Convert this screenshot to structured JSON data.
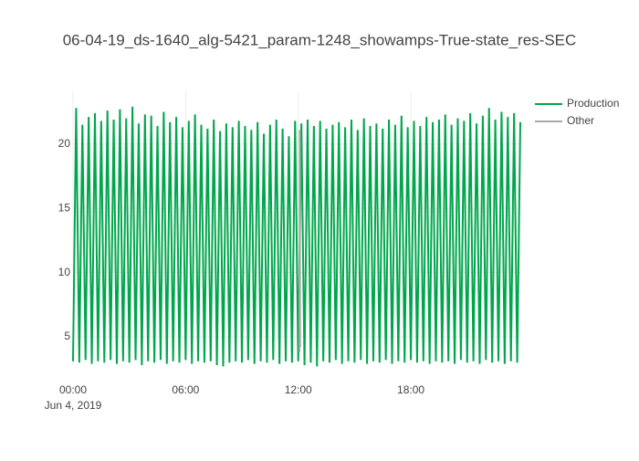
{
  "chart_data": {
    "type": "line",
    "title": "06-04-19_ds-1640_alg-5421_param-1248_showamps-True-state_res-SEC",
    "x_date_label": "Jun 4, 2019",
    "xlim": [
      "00:00",
      "23:50"
    ],
    "xticks": [
      "00:00",
      "06:00",
      "12:00",
      "18:00"
    ],
    "ylim": [
      2.8,
      24.1
    ],
    "yticks": [
      5,
      10,
      15,
      20
    ],
    "grid": true,
    "legend": "top-right",
    "series": [
      {
        "name": "Production",
        "color": "#00a64c",
        "x": [
          "00:00",
          "00:10",
          "00:20",
          "00:30",
          "00:40",
          "00:50",
          "01:00",
          "01:10",
          "01:20",
          "01:30",
          "01:40",
          "01:50",
          "02:00",
          "02:10",
          "02:20",
          "02:30",
          "02:40",
          "02:50",
          "03:00",
          "03:10",
          "03:20",
          "03:30",
          "03:40",
          "03:50",
          "04:00",
          "04:10",
          "04:20",
          "04:30",
          "04:40",
          "04:50",
          "05:00",
          "05:10",
          "05:20",
          "05:30",
          "05:40",
          "05:50",
          "06:00",
          "06:10",
          "06:20",
          "06:30",
          "06:40",
          "06:50",
          "07:00",
          "07:10",
          "07:20",
          "07:30",
          "07:40",
          "07:50",
          "08:00",
          "08:10",
          "08:20",
          "08:30",
          "08:40",
          "08:50",
          "09:00",
          "09:10",
          "09:20",
          "09:30",
          "09:40",
          "09:50",
          "10:00",
          "10:10",
          "10:20",
          "10:30",
          "10:40",
          "10:50",
          "11:00",
          "11:10",
          "11:20",
          "11:30",
          "11:40",
          "11:50",
          "12:00",
          "12:10",
          "12:20",
          "12:30",
          "12:40",
          "12:50",
          "13:00",
          "13:10",
          "13:20",
          "13:30",
          "13:40",
          "13:50",
          "14:00",
          "14:10",
          "14:20",
          "14:30",
          "14:40",
          "14:50",
          "15:00",
          "15:10",
          "15:20",
          "15:30",
          "15:40",
          "15:50",
          "16:00",
          "16:10",
          "16:20",
          "16:30",
          "16:40",
          "16:50",
          "17:00",
          "17:10",
          "17:20",
          "17:30",
          "17:40",
          "17:50",
          "18:00",
          "18:10",
          "18:20",
          "18:30",
          "18:40",
          "18:50",
          "19:00",
          "19:10",
          "19:20",
          "19:30",
          "19:40",
          "19:50",
          "20:00",
          "20:10",
          "20:20",
          "20:30",
          "20:40",
          "20:50",
          "21:00",
          "21:10",
          "21:20",
          "21:30",
          "21:40",
          "21:50",
          "22:00",
          "22:10",
          "22:20",
          "22:30",
          "22:40",
          "22:50",
          "23:00",
          "23:10",
          "23:20",
          "23:30",
          "23:40",
          "23:50"
        ],
        "values": [
          3.1,
          22.8,
          3.0,
          21.5,
          3.2,
          22.1,
          2.9,
          22.4,
          3.1,
          21.8,
          3.0,
          22.6,
          3.2,
          21.9,
          2.9,
          22.7,
          3.1,
          22.0,
          3.0,
          22.9,
          3.2,
          21.6,
          2.8,
          22.3,
          3.1,
          22.2,
          3.0,
          21.4,
          3.2,
          22.5,
          2.9,
          21.7,
          3.1,
          22.1,
          3.0,
          21.3,
          3.2,
          21.8,
          2.9,
          22.3,
          3.1,
          21.5,
          3.0,
          21.2,
          3.1,
          21.9,
          2.8,
          21.0,
          2.7,
          21.6,
          3.0,
          21.3,
          3.1,
          21.8,
          3.0,
          21.4,
          3.2,
          21.1,
          2.9,
          21.7,
          3.1,
          20.8,
          3.0,
          21.5,
          3.2,
          21.9,
          2.9,
          21.2,
          3.1,
          20.6,
          3.0,
          21.8,
          3.1,
          21.6,
          2.8,
          21.9,
          3.0,
          21.4,
          2.7,
          21.8,
          3.1,
          21.2,
          3.0,
          21.5,
          3.2,
          21.7,
          2.9,
          21.3,
          3.1,
          21.9,
          3.0,
          21.1,
          3.2,
          22.0,
          2.9,
          21.4,
          3.1,
          21.6,
          3.0,
          21.2,
          3.2,
          21.9,
          2.9,
          21.5,
          3.1,
          22.2,
          3.0,
          21.3,
          3.2,
          21.8,
          3.0,
          21.4,
          3.1,
          22.1,
          2.9,
          21.7,
          3.1,
          21.9,
          3.0,
          22.3,
          3.1,
          21.5,
          2.9,
          22.0,
          3.2,
          21.8,
          3.0,
          22.4,
          3.1,
          21.6,
          2.9,
          22.2,
          3.2,
          22.8,
          3.0,
          21.9,
          3.1,
          22.5,
          2.9,
          22.1,
          3.1,
          22.4,
          3.0,
          21.7
        ]
      },
      {
        "name": "Other",
        "color": "#aaaaaa",
        "x": [
          "12:04",
          "12:05",
          "12:06"
        ],
        "values": [
          3.8,
          21.1,
          4.2
        ]
      }
    ]
  }
}
